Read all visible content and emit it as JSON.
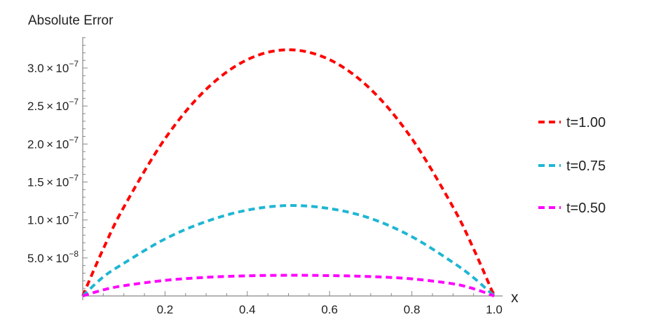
{
  "chart_data": {
    "type": "line",
    "title": "",
    "ylabel": "Absolute Error",
    "xlabel": "x",
    "xlim": [
      0,
      1.0
    ],
    "ylim": [
      0,
      3.4e-07
    ],
    "grid": false,
    "legend_placement": "right",
    "x_ticks": [
      {
        "value": 0.2,
        "label": "0.2"
      },
      {
        "value": 0.4,
        "label": "0.4"
      },
      {
        "value": 0.6,
        "label": "0.6"
      },
      {
        "value": 0.8,
        "label": "0.8"
      },
      {
        "value": 1.0,
        "label": "1.0"
      }
    ],
    "y_ticks": [
      {
        "value": 5e-08,
        "mantissa": "5.0",
        "exponent": "−8"
      },
      {
        "value": 1e-07,
        "mantissa": "1.0",
        "exponent": "−7"
      },
      {
        "value": 1.5e-07,
        "mantissa": "1.5",
        "exponent": "−7"
      },
      {
        "value": 2e-07,
        "mantissa": "2.0",
        "exponent": "−7"
      },
      {
        "value": 2.5e-07,
        "mantissa": "2.5",
        "exponent": "−7"
      },
      {
        "value": 3e-07,
        "mantissa": "3.0",
        "exponent": "−7"
      }
    ],
    "x": [
      0,
      0.05,
      0.1,
      0.2,
      0.3,
      0.4,
      0.5,
      0.6,
      0.7,
      0.8,
      0.9,
      0.95,
      1.0
    ],
    "series": [
      {
        "name": "t=1.00",
        "color": "#ff0000",
        "values": [
          0,
          6.2e-08,
          1.17e-07,
          2.07e-07,
          2.72e-07,
          3.11e-07,
          3.24e-07,
          3.11e-07,
          2.72e-07,
          2.07e-07,
          1.17e-07,
          6.2e-08,
          0
        ]
      },
      {
        "name": "t=0.75",
        "color": "#1fb6d3",
        "values": [
          0,
          2.5e-08,
          4.3e-08,
          7.5e-08,
          9.8e-08,
          1.13e-07,
          1.19e-07,
          1.15e-07,
          1.02e-07,
          7.8e-08,
          4.4e-08,
          2.4e-08,
          0
        ]
      },
      {
        "name": "t=0.50",
        "color": "#ff00ff",
        "values": [
          0,
          8e-09,
          1.35e-08,
          2.05e-08,
          2.45e-08,
          2.65e-08,
          2.72e-08,
          2.68e-08,
          2.55e-08,
          2.25e-08,
          1.6e-08,
          9.5e-09,
          0
        ]
      }
    ]
  }
}
